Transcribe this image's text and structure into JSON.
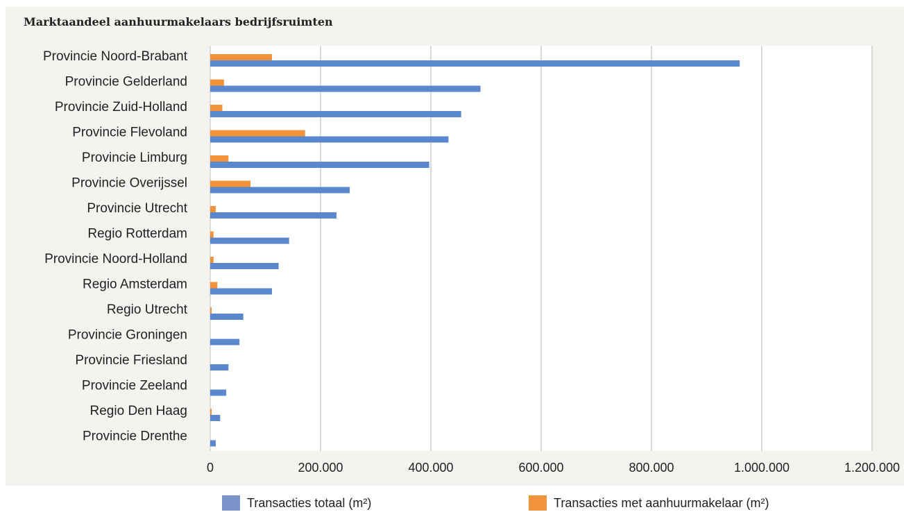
{
  "title": "Marktaandeel aanhuurmakelaars bedrijfsruimten",
  "legend": [
    {
      "label": "Transacties totaal (m²)",
      "color": "#7a93c9"
    },
    {
      "label": "Transacties met aanhuurmakelaar (m²)",
      "color": "#f0933a"
    }
  ],
  "chart_data": {
    "type": "bar",
    "orientation": "horizontal",
    "categories": [
      "Provincie Noord-Brabant",
      "Provincie Gelderland",
      "Provincie Zuid-Holland",
      "Provincie Flevoland",
      "Provincie Limburg",
      "Provincie Overijssel",
      "Provincie Utrecht",
      "Regio Rotterdam",
      "Provincie Noord-Holland",
      "Regio Amsterdam",
      "Regio Utrecht",
      "Provincie Groningen",
      "Provincie Friesland",
      "Provincie Zeeland",
      "Regio Den Haag",
      "Provincie Drenthe"
    ],
    "series": [
      {
        "name": "Transacties met aanhuurmakelaar (m²)",
        "color": "#f0933a",
        "values": [
          112000,
          25000,
          22000,
          172000,
          33000,
          73000,
          10000,
          6000,
          6000,
          13000,
          2000,
          0,
          0,
          0,
          2000,
          0
        ]
      },
      {
        "name": "Transacties totaal (m²)",
        "color": "#5b87cf",
        "values": [
          960000,
          490000,
          455000,
          432000,
          397000,
          253000,
          229000,
          143000,
          124000,
          112000,
          60000,
          53000,
          33000,
          29000,
          18000,
          10000
        ]
      }
    ],
    "xlim": [
      0,
      1200000
    ],
    "xticks": [
      "0",
      "200.000",
      "400.000",
      "600.000",
      "800.000",
      "1.000.000",
      "1.200.000"
    ],
    "grid": true,
    "legend_position": "bottom"
  }
}
